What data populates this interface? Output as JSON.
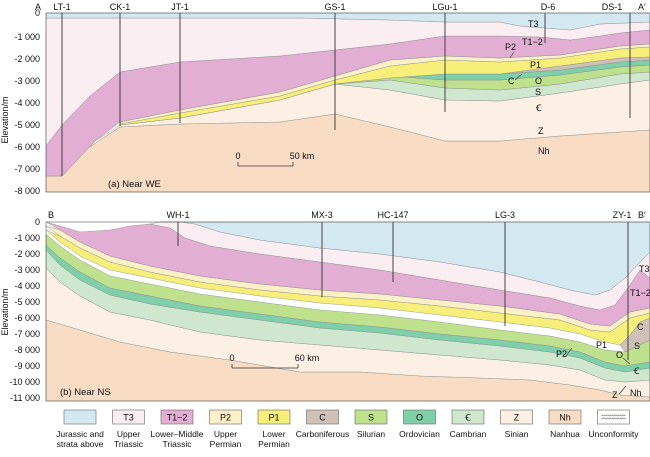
{
  "sectionA": {
    "left_end": "A",
    "right_end": "A′",
    "y_axis_title": "Elevation/m",
    "y_ticks": [
      "0",
      "-1 000",
      "-2 000",
      "-3 000",
      "-4 000",
      "-5 000",
      "-6 000",
      "-7 000",
      "-8 000"
    ],
    "wells": [
      "LT-1",
      "CK-1",
      "JT-1",
      "GS-1",
      "LGu-1",
      "D-6",
      "DS-1"
    ],
    "scale": {
      "start": "0",
      "end": "50 km"
    },
    "caption": "(a) Near WE",
    "unit_labels": {
      "T3": "T3",
      "T12": "T1−2",
      "P2": "P2",
      "P1": "P1",
      "C": "C",
      "O": "O",
      "S": "S",
      "Cam": "Ꞓ",
      "Z": "Z",
      "Nh": "Nh"
    }
  },
  "sectionB": {
    "left_end": "B",
    "right_end": "B′",
    "y_axis_title": "Elevation/m",
    "y_ticks": [
      "0",
      "-1 000",
      "-2 000",
      "-3 000",
      "-4 000",
      "-5 000",
      "-6 000",
      "-7 000",
      "-8 000",
      "-9 000",
      "-10 000",
      "-11 000"
    ],
    "wells": [
      "WH-1",
      "MX-3",
      "HC-147",
      "LG-3",
      "ZY-1"
    ],
    "scale": {
      "start": "0",
      "end": "60 km"
    },
    "caption": "(b) Near NS",
    "unit_labels": {
      "T3": "T3",
      "T12": "T1−2",
      "C": "C",
      "S": "S",
      "P2": "P2",
      "P1": "P1",
      "O": "O",
      "Cam": "Ꞓ",
      "Z": "Z",
      "Nh": "Nh"
    }
  },
  "legend": [
    {
      "symbol": "",
      "label": [
        "Jurassic and",
        "strata above"
      ],
      "color": "#d4e8f2",
      "name": "jurassic"
    },
    {
      "symbol": "T3",
      "label": [
        "Upper",
        "Triassic"
      ],
      "color": "#fbeef3",
      "name": "upper-triassic"
    },
    {
      "symbol": "T1−2",
      "label": [
        "Lower–Middle",
        "Triassic"
      ],
      "color": "#e3aed3",
      "name": "lower-middle-triassic"
    },
    {
      "symbol": "P2",
      "label": [
        "Upper",
        "Permian"
      ],
      "color": "#fbf0c8",
      "name": "upper-permian"
    },
    {
      "symbol": "P1",
      "label": [
        "Lower",
        "Permian"
      ],
      "color": "#f8ee7a",
      "name": "lower-permian"
    },
    {
      "symbol": "C",
      "label": [
        "Carboniferous"
      ],
      "color": "#cfc0b8",
      "name": "carboniferous"
    },
    {
      "symbol": "S",
      "label": [
        "Silurian"
      ],
      "color": "#bfe18e",
      "name": "silurian"
    },
    {
      "symbol": "O",
      "label": [
        "Ordovician"
      ],
      "color": "#7fcfaa",
      "name": "ordovician"
    },
    {
      "symbol": "Ꞓ",
      "label": [
        "Cambrian"
      ],
      "color": "#cfe6cf",
      "name": "cambrian"
    },
    {
      "symbol": "Z",
      "label": [
        "Sinian"
      ],
      "color": "#fcefe3",
      "name": "sinian"
    },
    {
      "symbol": "Nh",
      "label": [
        "Nanhua"
      ],
      "color": "#f8dcc4",
      "name": "nanhua"
    },
    {
      "symbol": "",
      "label": [
        "Unconformity"
      ],
      "color": "#ffffff",
      "name": "unconformity"
    }
  ]
}
